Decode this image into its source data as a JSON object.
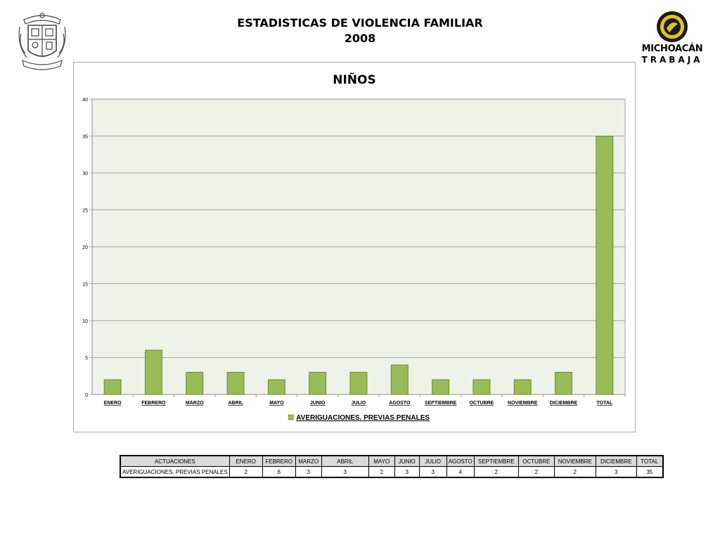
{
  "header": {
    "title_line1": "ESTADISTICAS DE VIOLENCIA FAMILIAR",
    "title_line2": "2008"
  },
  "logo": {
    "line1": "MICHOACÁN",
    "line2": "TRABAJA",
    "colors": {
      "ring": "#1a1a1a",
      "inner": "#e2c21a",
      "text": "#1a1a1a"
    }
  },
  "chart_data": {
    "type": "bar",
    "title": "NIÑOS",
    "categories": [
      "ENERO",
      "FEBRERO",
      "MARZO",
      "ABRIL",
      "MAYO",
      "JUNIO",
      "JULIO",
      "AGOSTO",
      "SEPTIEMBRE",
      "OCTUBRE",
      "NOVIEMBRE",
      "DICIEMBRE",
      "TOTAL"
    ],
    "series": [
      {
        "name": "AVERIGUACIONES. PREVIAS PENALES",
        "values": [
          2,
          6,
          3,
          3,
          2,
          3,
          3,
          4,
          2,
          2,
          2,
          3,
          35
        ],
        "color": "#9bbb59",
        "stroke": "#6f8a2f"
      }
    ],
    "ylim": [
      0,
      40
    ],
    "yticks": [
      0,
      5,
      10,
      15,
      20,
      25,
      30,
      35,
      40
    ],
    "grid": true,
    "plot_background": "#eef2e8",
    "legend_position": "bottom"
  },
  "table": {
    "header_label": "ACTUACIONES",
    "columns": [
      "ENERO",
      "FEBRERO",
      "MARZO",
      "ABRIL",
      "MAYO",
      "JUNIO",
      "JULIO",
      "AGOSTO",
      "SEPTIEMBRE",
      "OCTUBRE",
      "NOVIEMBRE",
      "DICIEMBRE",
      "TOTAL"
    ],
    "rows": [
      {
        "label": "AVERIGUACIONES. PREVIAS PENALES",
        "values": [
          "2",
          "6",
          "3",
          "3",
          "2",
          "3",
          "3",
          "4",
          "2",
          "2",
          "2",
          "3",
          "35"
        ]
      }
    ]
  }
}
